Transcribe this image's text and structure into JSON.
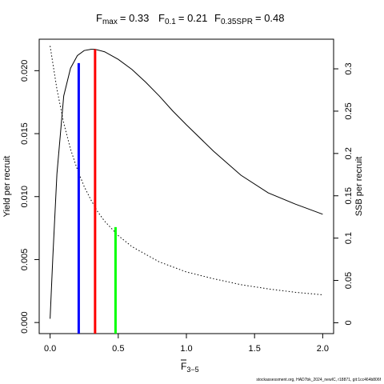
{
  "chart_data": {
    "type": "line",
    "title_parts": {
      "fmax_label": "F",
      "fmax_sub": "max",
      "fmax_value": "= 0.33",
      "f01_label": "F",
      "f01_sub": "0.1",
      "f01_value": "= 0.21",
      "fspr_label": "F",
      "fspr_sub": "0.35SPR",
      "fspr_value": "= 0.48"
    },
    "xlabel": "F",
    "xlabel_sub": "3−5",
    "ylabel_left": "Yield per recruit",
    "ylabel_right": "SSB per recruit",
    "xlim": [
      -0.08,
      2.08
    ],
    "ylim_left": [
      -0.00088,
      0.0225
    ],
    "ylim_right": [
      -0.0128,
      0.335
    ],
    "x_ticks": [
      "0.0",
      "0.5",
      "1.0",
      "1.5",
      "2.0"
    ],
    "y_left_ticks": [
      "0.000",
      "0.005",
      "0.010",
      "0.015",
      "0.020"
    ],
    "y_right_ticks": [
      "0",
      "0.05",
      "0.1",
      "0.15",
      "0.2",
      "0.25",
      "0.3"
    ],
    "series": [
      {
        "axis": "left",
        "style": "solid",
        "color": "#000000",
        "x": [
          0,
          0.02,
          0.05,
          0.1,
          0.15,
          0.2,
          0.25,
          0.3,
          0.33,
          0.4,
          0.5,
          0.6,
          0.7,
          0.8,
          0.9,
          1.0,
          1.2,
          1.4,
          1.6,
          1.8,
          2.0
        ],
        "y": [
          0.0003,
          0.0052,
          0.0118,
          0.018,
          0.0202,
          0.0212,
          0.0216,
          0.0217,
          0.0217,
          0.0215,
          0.0209,
          0.0201,
          0.0191,
          0.018,
          0.0168,
          0.0157,
          0.0136,
          0.0117,
          0.0103,
          0.0094,
          0.0086
        ]
      },
      {
        "axis": "right",
        "style": "dotted",
        "color": "#000000",
        "x": [
          0,
          0.05,
          0.1,
          0.15,
          0.2,
          0.25,
          0.3,
          0.35,
          0.4,
          0.5,
          0.6,
          0.8,
          1.0,
          1.2,
          1.4,
          1.6,
          1.8,
          2.0
        ],
        "y": [
          0.327,
          0.276,
          0.236,
          0.205,
          0.181,
          0.161,
          0.145,
          0.131,
          0.12,
          0.103,
          0.09,
          0.072,
          0.06,
          0.052,
          0.045,
          0.04,
          0.036,
          0.033
        ]
      }
    ],
    "reference_lines": [
      {
        "name": "F0.1",
        "x": 0.21,
        "y": 0.0206,
        "axis": "left",
        "color": "#0000ff"
      },
      {
        "name": "Fmax",
        "x": 0.33,
        "y": 0.0217,
        "axis": "left",
        "color": "#ff0000"
      },
      {
        "name": "F0.35SPR",
        "x": 0.48,
        "y": 0.113,
        "axis": "right",
        "color": "#00ff00"
      }
    ],
    "footer": "stockassessment.org, HAD7bk_2024_newIC, r18871, git:1cc464b806f"
  }
}
